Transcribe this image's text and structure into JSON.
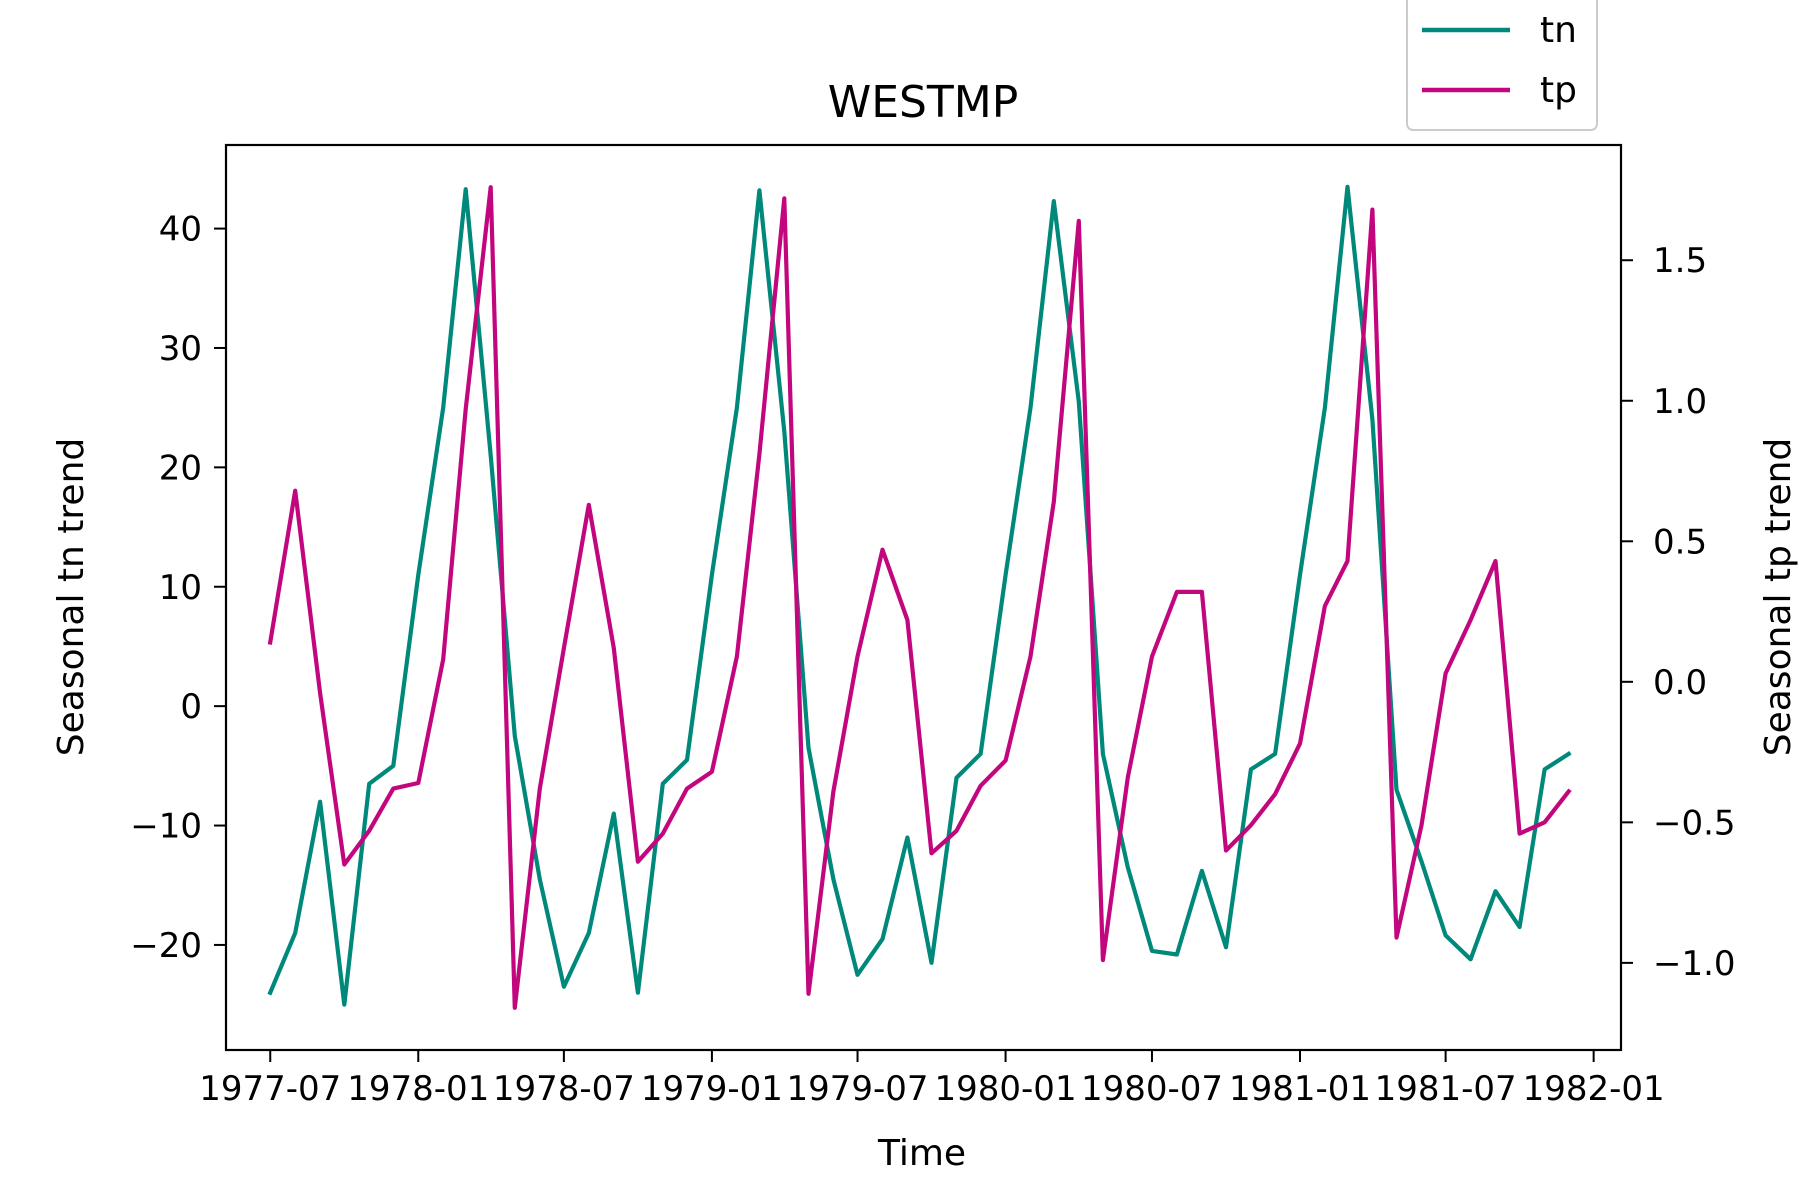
{
  "chart_data": {
    "type": "line",
    "title": "WESTMP",
    "xlabel": "Time",
    "ylabel_left": "Seasonal tn trend",
    "ylabel_right": "Seasonal tp trend",
    "x_tick_labels": [
      "1977-07",
      "1978-01",
      "1978-07",
      "1979-01",
      "1979-07",
      "1980-01",
      "1980-07",
      "1981-01",
      "1981-07",
      "1982-01"
    ],
    "x_ticks": [
      "1977-07",
      "1978-01",
      "1978-07",
      "1979-01",
      "1979-07",
      "1980-01",
      "1980-07",
      "1981-01",
      "1981-07",
      "1982-01"
    ],
    "y_left_ticks": [
      -20,
      -10,
      0,
      10,
      20,
      30,
      40
    ],
    "y_left_tick_labels": [
      "−20",
      "−10",
      "0",
      "10",
      "20",
      "30",
      "40"
    ],
    "y_right_ticks": [
      -1.0,
      -0.5,
      0.0,
      0.5,
      1.0,
      1.5
    ],
    "y_right_tick_labels": [
      "−1.0",
      "−0.5",
      "0.0",
      "0.5",
      "1.0",
      "1.5"
    ],
    "xlim": [
      "1977-05-07",
      "1982-02-04"
    ],
    "ylim_left": [
      -28.8,
      47.0
    ],
    "ylim_right": [
      -1.31,
      1.91
    ],
    "legend_position": "top-right, above plot",
    "x": [
      "1977-07-01",
      "1977-08-01",
      "1977-09-01",
      "1977-10-01",
      "1977-11-01",
      "1977-12-01",
      "1978-01-01",
      "1978-02-01",
      "1978-03-01",
      "1978-04-01",
      "1978-05-01",
      "1978-06-01",
      "1978-07-01",
      "1978-08-01",
      "1978-09-01",
      "1978-10-01",
      "1978-11-01",
      "1978-12-01",
      "1979-01-01",
      "1979-02-01",
      "1979-03-01",
      "1979-04-01",
      "1979-05-01",
      "1979-06-01",
      "1979-07-01",
      "1979-08-01",
      "1979-09-01",
      "1979-10-01",
      "1979-11-01",
      "1979-12-01",
      "1980-01-01",
      "1980-02-01",
      "1980-03-01",
      "1980-04-01",
      "1980-05-01",
      "1980-06-01",
      "1980-07-01",
      "1980-08-01",
      "1980-09-01",
      "1980-10-01",
      "1980-11-01",
      "1980-12-01",
      "1981-01-01",
      "1981-02-01",
      "1981-03-01",
      "1981-04-01",
      "1981-05-01",
      "1981-06-01",
      "1981-07-01",
      "1981-08-01",
      "1981-09-01",
      "1981-10-01",
      "1981-11-01",
      "1981-12-01"
    ],
    "series": [
      {
        "name": "tn",
        "axis": "left",
        "color": "#00897b",
        "values": [
          -24.0,
          -19.0,
          -8.0,
          -25.0,
          -6.5,
          -5.0,
          11.0,
          25.0,
          43.3,
          21.0,
          -2.5,
          -14.5,
          -23.5,
          -19.0,
          -9.0,
          -24.0,
          -6.5,
          -4.5,
          11.0,
          25.0,
          43.2,
          23.0,
          -3.5,
          -14.5,
          -22.5,
          -19.5,
          -11.0,
          -21.5,
          -6.0,
          -4.0,
          11.0,
          25.0,
          42.3,
          25.5,
          -4.0,
          -13.5,
          -20.5,
          -20.8,
          -13.8,
          -20.2,
          -5.3,
          -4.0,
          11.0,
          25.0,
          43.5,
          24.0,
          -7.0,
          -13.0,
          -19.2,
          -21.2,
          -15.5,
          -18.5,
          -5.3,
          -4.0
        ]
      },
      {
        "name": "tp",
        "axis": "right",
        "color": "#c2077e",
        "values": [
          0.14,
          0.68,
          -0.04,
          -0.65,
          -0.53,
          -0.38,
          -0.36,
          0.08,
          0.97,
          1.76,
          -1.16,
          -0.38,
          0.12,
          0.63,
          0.12,
          -0.64,
          -0.54,
          -0.38,
          -0.32,
          0.09,
          0.81,
          1.72,
          -1.11,
          -0.39,
          0.09,
          0.47,
          0.22,
          -0.61,
          -0.53,
          -0.37,
          -0.28,
          0.09,
          0.64,
          1.64,
          -0.99,
          -0.34,
          0.09,
          0.32,
          0.32,
          -0.6,
          -0.51,
          -0.4,
          -0.22,
          0.27,
          0.43,
          1.68,
          -0.91,
          -0.51,
          0.03,
          0.22,
          0.43,
          -0.54,
          -0.5,
          -0.39
        ]
      }
    ]
  }
}
